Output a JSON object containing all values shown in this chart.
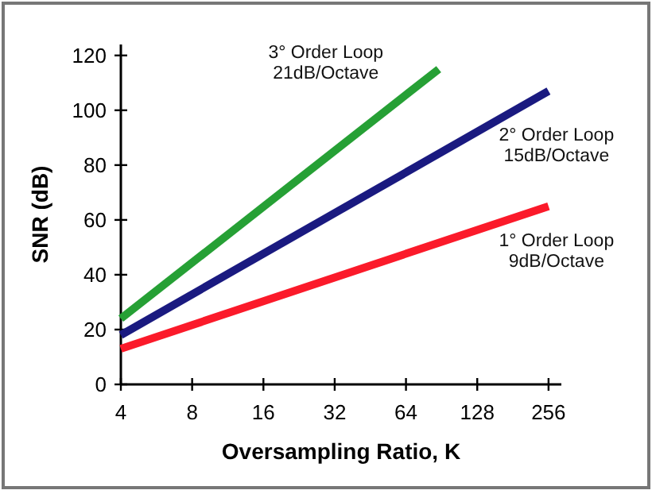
{
  "chart_data": {
    "type": "line",
    "xlabel": "Oversampling Ratio, K",
    "ylabel": "SNR (dB)",
    "log": "x",
    "xlim": [
      4,
      290
    ],
    "xticks": [
      4,
      8,
      16,
      32,
      64,
      128,
      256
    ],
    "ylim": [
      0,
      124
    ],
    "yticks": [
      0,
      20,
      40,
      60,
      80,
      100,
      120
    ],
    "grid": false,
    "marker": "none",
    "line_style": "solid",
    "series": [
      {
        "name": "3° Order Loop",
        "color": "#26a035",
        "x": [
          4,
          88
        ],
        "values": [
          24,
          115
        ]
      },
      {
        "name": "2° Order Loop",
        "color": "#1a1a80",
        "x": [
          4,
          256
        ],
        "values": [
          18,
          107
        ]
      },
      {
        "name": "1° Order Loop",
        "color": "#fb1a2a",
        "x": [
          4,
          256
        ],
        "values": [
          13,
          65
        ]
      }
    ],
    "annotations": [
      "21dB/Octave",
      "15dB/Octave",
      "9dB/Octave"
    ]
  }
}
